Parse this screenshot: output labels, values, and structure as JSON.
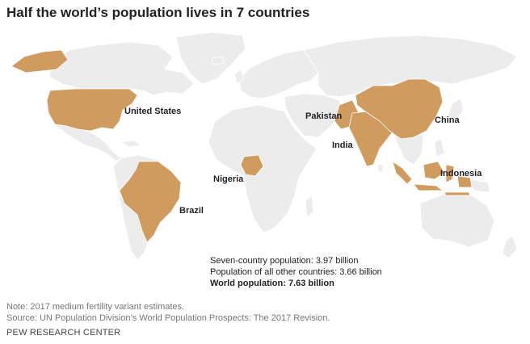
{
  "title": "Half the world’s population lives in 7 countries",
  "colors": {
    "highlight": "#cf9b5e",
    "land": "#ececec",
    "border": "#ffffff",
    "ocean": "#ffffff"
  },
  "countries": [
    {
      "id": "united-states",
      "label": "United States"
    },
    {
      "id": "brazil",
      "label": "Brazil"
    },
    {
      "id": "nigeria",
      "label": "Nigeria"
    },
    {
      "id": "pakistan",
      "label": "Pakistan"
    },
    {
      "id": "india",
      "label": "India"
    },
    {
      "id": "china",
      "label": "China"
    },
    {
      "id": "indonesia",
      "label": "Indonesia"
    }
  ],
  "stats": {
    "seven_country": "Seven-country population: 3.97 billion",
    "others": "Population of all other countries: 3.66 billion",
    "world": "World population: 7.63 billion"
  },
  "note": "Note: 2017 medium fertility variant estimates.",
  "source": "Source: UN Population Division’s World Population Prospects: The 2017 Revision.",
  "brand": "PEW RESEARCH CENTER"
}
